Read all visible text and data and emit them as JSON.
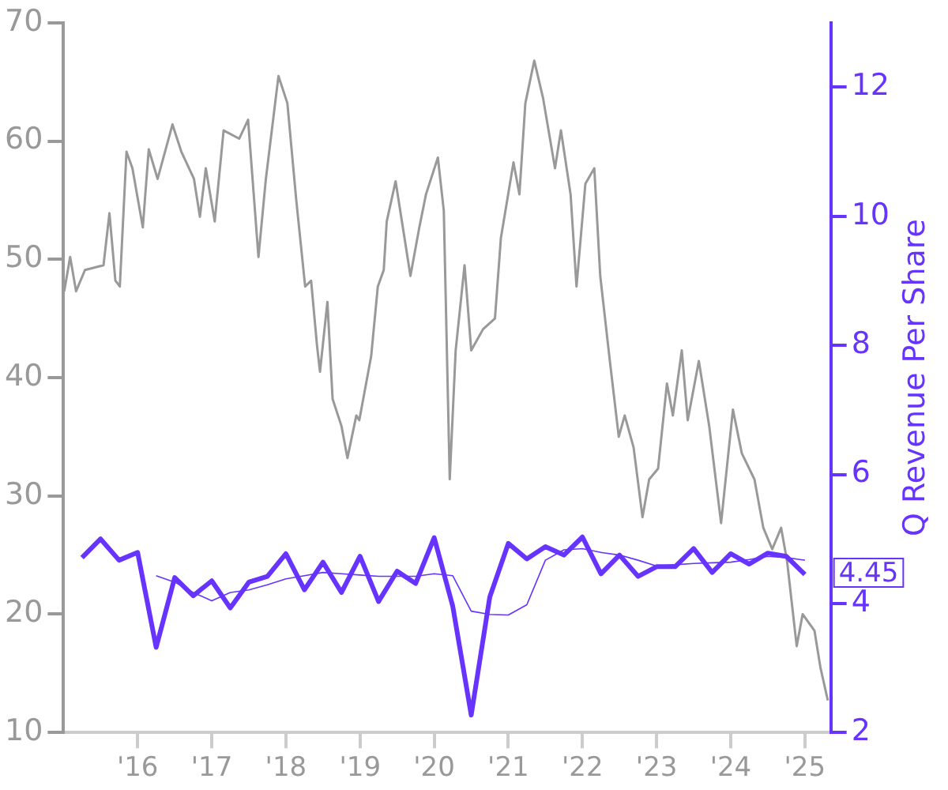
{
  "chart_data": {
    "type": "line",
    "y2label": "Q Revenue Per Share",
    "xlim": [
      2015.0,
      2025.35
    ],
    "xticks": [
      {
        "value": 2016,
        "label": "'16"
      },
      {
        "value": 2017,
        "label": "'17"
      },
      {
        "value": 2018,
        "label": "'18"
      },
      {
        "value": 2019,
        "label": "'19"
      },
      {
        "value": 2020,
        "label": "'20"
      },
      {
        "value": 2021,
        "label": "'21"
      },
      {
        "value": 2022,
        "label": "'22"
      },
      {
        "value": 2023,
        "label": "'23"
      },
      {
        "value": 2024,
        "label": "'24"
      },
      {
        "value": 2025,
        "label": "'25"
      }
    ],
    "ylim": [
      10,
      70
    ],
    "yticks": [
      10,
      20,
      30,
      40,
      50,
      60,
      70
    ],
    "y2lim": [
      2,
      13
    ],
    "y2ticks": [
      2,
      4,
      6,
      8,
      10,
      12
    ],
    "grid": false,
    "legend": false,
    "marker": "none",
    "annotations": [
      "4.45"
    ],
    "series": [
      {
        "color": "#999999",
        "axis": "y",
        "x": [
          2015.01,
          2015.09,
          2015.17,
          2015.29,
          2015.54,
          2015.62,
          2015.7,
          2015.76,
          2015.85,
          2015.93,
          2016.07,
          2016.15,
          2016.27,
          2016.47,
          2016.59,
          2016.76,
          2016.84,
          2016.92,
          2017.04,
          2017.16,
          2017.37,
          2017.49,
          2017.63,
          2017.73,
          2017.9,
          2018.02,
          2018.14,
          2018.26,
          2018.34,
          2018.42,
          2018.46,
          2018.56,
          2018.63,
          2018.75,
          2018.83,
          2018.95,
          2018.99,
          2019.15,
          2019.24,
          2019.32,
          2019.36,
          2019.48,
          2019.68,
          2019.8,
          2019.89,
          2020.05,
          2020.13,
          2020.21,
          2020.29,
          2020.41,
          2020.5,
          2020.66,
          2020.82,
          2020.9,
          2021.07,
          2021.15,
          2021.23,
          2021.35,
          2021.47,
          2021.63,
          2021.71,
          2021.84,
          2021.92,
          2022.04,
          2022.16,
          2022.24,
          2022.37,
          2022.49,
          2022.57,
          2022.69,
          2022.81,
          2022.9,
          2023.02,
          2023.14,
          2023.22,
          2023.34,
          2023.42,
          2023.57,
          2023.71,
          2023.87,
          2024.03,
          2024.15,
          2024.32,
          2024.44,
          2024.56,
          2024.68,
          2024.76,
          2024.89,
          2024.97,
          2025.13,
          2025.21,
          2025.31
        ],
        "values": [
          47.3,
          50.2,
          47.3,
          49.1,
          49.5,
          53.9,
          48.2,
          47.7,
          59.1,
          57.7,
          52.7,
          59.3,
          56.8,
          61.4,
          59.1,
          56.8,
          53.6,
          57.7,
          53.2,
          60.9,
          60.2,
          61.8,
          50.2,
          56.8,
          65.5,
          63.2,
          55.0,
          47.7,
          48.2,
          42.7,
          40.5,
          46.4,
          38.2,
          35.9,
          33.2,
          36.8,
          36.4,
          41.8,
          47.7,
          49.1,
          53.2,
          56.6,
          48.6,
          52.7,
          55.5,
          58.6,
          54.1,
          31.4,
          42.3,
          49.5,
          42.3,
          44.1,
          45.0,
          51.8,
          58.2,
          55.5,
          63.2,
          66.8,
          63.6,
          57.7,
          60.9,
          55.5,
          47.7,
          56.4,
          57.7,
          48.6,
          41.4,
          35.0,
          36.8,
          34.1,
          28.2,
          31.4,
          32.3,
          39.5,
          36.8,
          42.3,
          36.4,
          41.4,
          35.9,
          27.7,
          37.3,
          33.6,
          31.4,
          27.3,
          25.5,
          27.3,
          24.5,
          17.3,
          20.0,
          18.6,
          15.5,
          12.7
        ]
      },
      {
        "color": "#6633ff",
        "axis": "y2",
        "x": [
          2015.25,
          2015.5,
          2015.75,
          2016,
          2016.25,
          2016.5,
          2016.75,
          2017,
          2017.25,
          2017.5,
          2017.75,
          2018,
          2018.25,
          2018.5,
          2018.75,
          2019,
          2019.25,
          2019.5,
          2019.75,
          2020,
          2020.25,
          2020.5,
          2020.75,
          2021,
          2021.25,
          2021.5,
          2021.75,
          2022,
          2022.25,
          2022.5,
          2022.75,
          2023,
          2023.25,
          2023.5,
          2023.75,
          2024,
          2024.25,
          2024.5,
          2024.75,
          2025
        ],
        "values": [
          4.71,
          5.0,
          4.67,
          4.79,
          3.32,
          4.4,
          4.12,
          4.35,
          3.93,
          4.33,
          4.42,
          4.77,
          4.21,
          4.64,
          4.17,
          4.73,
          4.03,
          4.5,
          4.31,
          5.02,
          3.96,
          2.27,
          4.1,
          4.93,
          4.69,
          4.88,
          4.75,
          5.03,
          4.46,
          4.75,
          4.42,
          4.57,
          4.57,
          4.85,
          4.48,
          4.77,
          4.61,
          4.78,
          4.73,
          4.45
        ]
      },
      {
        "color": "#6633ff",
        "axis": "y2",
        "x": [
          2016.25,
          2016.5,
          2016.75,
          2017,
          2017.25,
          2017.5,
          2017.75,
          2018,
          2018.25,
          2018.5,
          2018.75,
          2019,
          2019.25,
          2019.5,
          2019.75,
          2020,
          2020.25,
          2020.5,
          2020.75,
          2021,
          2021.25,
          2021.5,
          2021.75,
          2022,
          2022.25,
          2022.5,
          2022.75,
          2023,
          2023.25,
          2023.5,
          2023.75,
          2024,
          2024.25,
          2024.5,
          2024.75,
          2025
        ],
        "values": [
          4.43,
          4.33,
          4.17,
          4.04,
          4.17,
          4.21,
          4.29,
          4.38,
          4.43,
          4.48,
          4.46,
          4.44,
          4.42,
          4.42,
          4.42,
          4.46,
          4.43,
          3.88,
          3.83,
          3.82,
          3.98,
          4.67,
          4.83,
          4.85,
          4.79,
          4.75,
          4.67,
          4.58,
          4.6,
          4.62,
          4.63,
          4.64,
          4.68,
          4.73,
          4.71,
          4.67
        ]
      }
    ]
  }
}
